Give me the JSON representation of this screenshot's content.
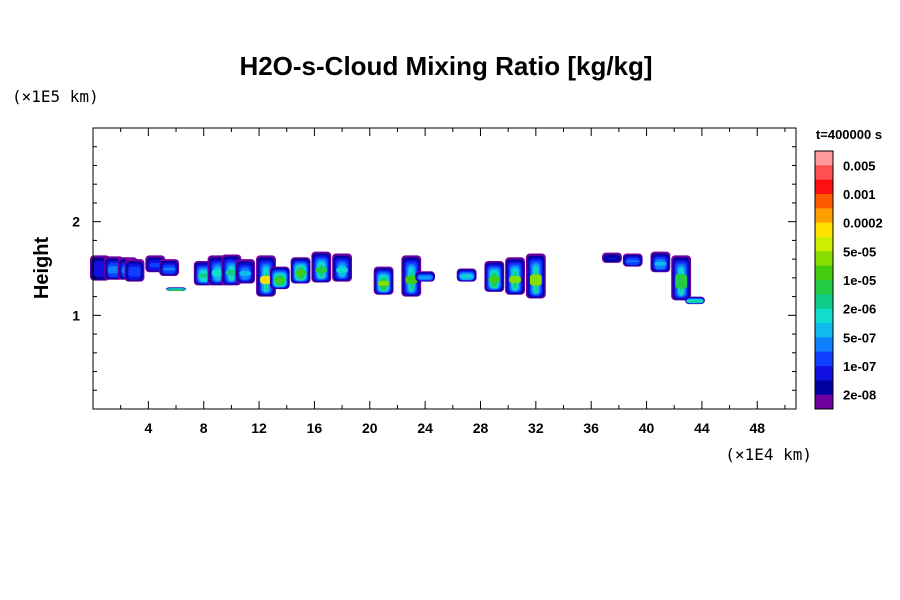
{
  "chart_data": {
    "type": "heatmap",
    "title": "H2O-s-Cloud Mixing Ratio [kg/kg]",
    "xlabel": "",
    "ylabel": "Height",
    "x_unit": "(×1E4 km)",
    "y_unit": "(×1E5 km)",
    "xlim": [
      0,
      50.8
    ],
    "ylim": [
      0,
      3
    ],
    "x_ticks": [
      4,
      8,
      12,
      16,
      20,
      24,
      28,
      32,
      36,
      40,
      44,
      48
    ],
    "x_tick_labels": [
      "4",
      "8",
      "12",
      "16",
      "20",
      "24",
      "28",
      "32",
      "36",
      "40",
      "44",
      "48"
    ],
    "y_ticks": [
      1,
      2
    ],
    "y_tick_labels": [
      "1",
      "2"
    ],
    "time_label": "t=400000 s",
    "colorbar": {
      "labels": [
        "0.005",
        "0.001",
        "0.0002",
        "5e-05",
        "1e-05",
        "2e-06",
        "5e-07",
        "1e-07",
        "2e-08"
      ],
      "colors": [
        "#ff9a9a",
        "#ff5050",
        "#ff1010",
        "#ff5a00",
        "#ffa000",
        "#ffe000",
        "#ccee00",
        "#88dd00",
        "#44cc10",
        "#22cc44",
        "#10cc88",
        "#10ddcc",
        "#10bbee",
        "#1080ff",
        "#1040ff",
        "#1010e0",
        "#0000a0",
        "#7000a0"
      ]
    },
    "cloud_cells": [
      {
        "x": 0.5,
        "y0": 1.37,
        "y1": 1.64,
        "level": 15
      },
      {
        "x": 1.5,
        "y0": 1.38,
        "y1": 1.63,
        "level": 13
      },
      {
        "x": 2.5,
        "y0": 1.38,
        "y1": 1.62,
        "level": 13
      },
      {
        "x": 3.0,
        "y0": 1.36,
        "y1": 1.6,
        "level": 14
      },
      {
        "x": 4.5,
        "y0": 1.46,
        "y1": 1.64,
        "level": 14
      },
      {
        "x": 5.5,
        "y0": 1.42,
        "y1": 1.6,
        "level": 13
      },
      {
        "x": 6.0,
        "y0": 1.26,
        "y1": 1.3,
        "level": 9
      },
      {
        "x": 8.0,
        "y0": 1.32,
        "y1": 1.58,
        "level": 10
      },
      {
        "x": 9.0,
        "y0": 1.32,
        "y1": 1.64,
        "level": 11
      },
      {
        "x": 10.0,
        "y0": 1.32,
        "y1": 1.65,
        "level": 10
      },
      {
        "x": 11.0,
        "y0": 1.34,
        "y1": 1.6,
        "level": 12
      },
      {
        "x": 12.5,
        "y0": 1.2,
        "y1": 1.64,
        "level": 5
      },
      {
        "x": 13.5,
        "y0": 1.28,
        "y1": 1.52,
        "level": 8
      },
      {
        "x": 15.0,
        "y0": 1.34,
        "y1": 1.62,
        "level": 8
      },
      {
        "x": 16.5,
        "y0": 1.35,
        "y1": 1.68,
        "level": 9
      },
      {
        "x": 18.0,
        "y0": 1.36,
        "y1": 1.66,
        "level": 11
      },
      {
        "x": 21.0,
        "y0": 1.22,
        "y1": 1.52,
        "level": 7
      },
      {
        "x": 23.0,
        "y0": 1.2,
        "y1": 1.64,
        "level": 8
      },
      {
        "x": 24.0,
        "y0": 1.36,
        "y1": 1.47,
        "level": 12
      },
      {
        "x": 27.0,
        "y0": 1.36,
        "y1": 1.5,
        "level": 11
      },
      {
        "x": 29.0,
        "y0": 1.25,
        "y1": 1.58,
        "level": 8
      },
      {
        "x": 30.5,
        "y0": 1.22,
        "y1": 1.62,
        "level": 7
      },
      {
        "x": 32.0,
        "y0": 1.18,
        "y1": 1.66,
        "level": 7
      },
      {
        "x": 37.5,
        "y0": 1.56,
        "y1": 1.67,
        "level": 15
      },
      {
        "x": 39.0,
        "y0": 1.52,
        "y1": 1.66,
        "level": 13
      },
      {
        "x": 41.0,
        "y0": 1.46,
        "y1": 1.68,
        "level": 12
      },
      {
        "x": 42.5,
        "y0": 1.16,
        "y1": 1.64,
        "level": 9
      },
      {
        "x": 43.5,
        "y0": 1.12,
        "y1": 1.2,
        "level": 10
      }
    ]
  }
}
